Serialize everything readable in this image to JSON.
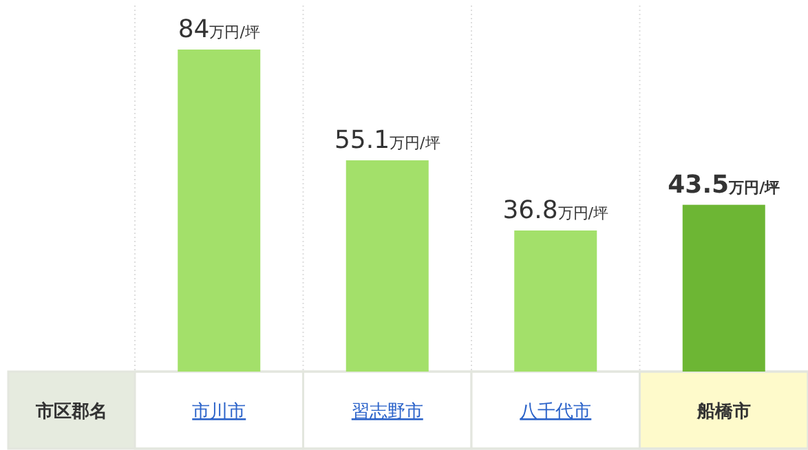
{
  "chart_data": {
    "type": "bar",
    "xlabel": "市区郡名",
    "categories": [
      "市川市",
      "習志野市",
      "八千代市",
      "船橋市"
    ],
    "values": [
      84,
      55.1,
      36.8,
      43.5
    ],
    "value_labels": [
      "84万円/坪",
      "55.1万円/坪",
      "36.8万円/坪",
      "43.5万円/坪"
    ],
    "colors": [
      "#a3e06a",
      "#a3e06a",
      "#a3e06a",
      "#6db634"
    ],
    "grid": "x"
  }
}
